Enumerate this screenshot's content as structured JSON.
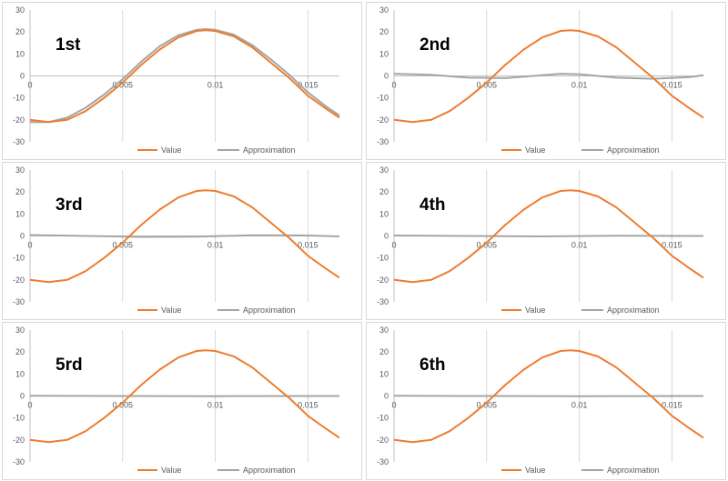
{
  "colors": {
    "value": "#ed7d31",
    "approximation": "#a5a5a5",
    "axis": "#bfbfbf",
    "grid": "#d9d9d9"
  },
  "legend": {
    "value_label": "Value",
    "approx_label": "Approximation"
  },
  "charts": [
    {
      "title": "1st"
    },
    {
      "title": "2nd"
    },
    {
      "title": "3rd"
    },
    {
      "title": "4th"
    },
    {
      "title": "5rd"
    },
    {
      "title": "6th"
    }
  ],
  "chart_data": [
    {
      "type": "line",
      "title": "1st",
      "xlim": [
        0,
        0.0167
      ],
      "ylim": [
        -30,
        30
      ],
      "x_ticks": [
        0,
        0.005,
        0.01,
        0.015
      ],
      "x_tick_labels": [
        "0",
        "0.005",
        "0.01",
        "0.015"
      ],
      "y_ticks": [
        30,
        20,
        10,
        0,
        -10,
        -20,
        -30
      ],
      "y_tick_labels": [
        "30",
        "20",
        "10",
        "0",
        "-10",
        "-20",
        "-30"
      ],
      "series": [
        {
          "name": "Value",
          "x": [
            0,
            0.001,
            0.002,
            0.003,
            0.004,
            0.005,
            0.006,
            0.007,
            0.008,
            0.009,
            0.0095,
            0.01,
            0.011,
            0.012,
            0.013,
            0.014,
            0.015,
            0.016,
            0.0167
          ],
          "values": [
            -20,
            -21,
            -20,
            -16,
            -10,
            -3,
            5,
            12,
            17.5,
            20.5,
            20.8,
            20.5,
            18,
            13,
            6,
            -1,
            -9,
            -15,
            -19
          ]
        },
        {
          "name": "Approximation",
          "x": [
            0,
            0.001,
            0.002,
            0.003,
            0.004,
            0.005,
            0.006,
            0.007,
            0.008,
            0.009,
            0.0095,
            0.01,
            0.011,
            0.012,
            0.013,
            0.014,
            0.015,
            0.016,
            0.0167
          ],
          "values": [
            -21,
            -21,
            -19,
            -14.5,
            -8.5,
            -1.5,
            6.5,
            13.5,
            18.5,
            21,
            21.3,
            21,
            18.8,
            14,
            7.5,
            0.5,
            -7.5,
            -14,
            -18
          ]
        }
      ]
    },
    {
      "type": "line",
      "title": "2nd",
      "xlim": [
        0,
        0.0167
      ],
      "ylim": [
        -30,
        30
      ],
      "x_ticks": [
        0,
        0.005,
        0.01,
        0.015
      ],
      "x_tick_labels": [
        "0",
        "0.005",
        "0.01",
        "0.015"
      ],
      "y_ticks": [
        30,
        20,
        10,
        0,
        -10,
        -20,
        -30
      ],
      "y_tick_labels": [
        "30",
        "20",
        "10",
        "0",
        "-10",
        "-20",
        "-30"
      ],
      "series": [
        {
          "name": "Value",
          "x": [
            0,
            0.001,
            0.002,
            0.003,
            0.004,
            0.005,
            0.006,
            0.007,
            0.008,
            0.009,
            0.0095,
            0.01,
            0.011,
            0.012,
            0.013,
            0.014,
            0.015,
            0.016,
            0.0167
          ],
          "values": [
            -20,
            -21,
            -20,
            -16,
            -10,
            -3,
            5,
            12,
            17.5,
            20.5,
            20.8,
            20.5,
            18,
            13,
            6,
            -1,
            -9,
            -15,
            -19
          ]
        },
        {
          "name": "Approximation",
          "x": [
            0,
            0.002,
            0.004,
            0.006,
            0.008,
            0.009,
            0.01,
            0.012,
            0.014,
            0.016,
            0.0167
          ],
          "values": [
            1,
            0.5,
            -0.8,
            -1,
            0.3,
            1,
            0.8,
            -0.8,
            -1.3,
            -0.5,
            0.3
          ]
        }
      ]
    },
    {
      "type": "line",
      "title": "3rd",
      "xlim": [
        0,
        0.0167
      ],
      "ylim": [
        -30,
        30
      ],
      "x_ticks": [
        0,
        0.005,
        0.01,
        0.015
      ],
      "x_tick_labels": [
        "0",
        "0.005",
        "0.01",
        "0.015"
      ],
      "y_ticks": [
        30,
        20,
        10,
        0,
        -10,
        -20,
        -30
      ],
      "y_tick_labels": [
        "30",
        "20",
        "10",
        "0",
        "-10",
        "-20",
        "-30"
      ],
      "series": [
        {
          "name": "Value",
          "x": [
            0,
            0.001,
            0.002,
            0.003,
            0.004,
            0.005,
            0.006,
            0.007,
            0.008,
            0.009,
            0.0095,
            0.01,
            0.011,
            0.012,
            0.013,
            0.014,
            0.015,
            0.016,
            0.0167
          ],
          "values": [
            -20,
            -21,
            -20,
            -16,
            -10,
            -3,
            5,
            12,
            17.5,
            20.5,
            20.8,
            20.5,
            18,
            13,
            6,
            -1,
            -9,
            -15,
            -19
          ]
        },
        {
          "name": "Approximation",
          "x": [
            0,
            0.003,
            0.006,
            0.009,
            0.012,
            0.015,
            0.0167
          ],
          "values": [
            0.4,
            0,
            -0.4,
            -0.3,
            0.3,
            0.2,
            -0.2
          ]
        }
      ]
    },
    {
      "type": "line",
      "title": "4th",
      "xlim": [
        0,
        0.0167
      ],
      "ylim": [
        -30,
        30
      ],
      "x_ticks": [
        0,
        0.005,
        0.01,
        0.015
      ],
      "x_tick_labels": [
        "0",
        "0.005",
        "0.01",
        "0.015"
      ],
      "y_ticks": [
        30,
        20,
        10,
        0,
        -10,
        -20,
        -30
      ],
      "y_tick_labels": [
        "30",
        "20",
        "10",
        "0",
        "-10",
        "-20",
        "-30"
      ],
      "series": [
        {
          "name": "Value",
          "x": [
            0,
            0.001,
            0.002,
            0.003,
            0.004,
            0.005,
            0.006,
            0.007,
            0.008,
            0.009,
            0.0095,
            0.01,
            0.011,
            0.012,
            0.013,
            0.014,
            0.015,
            0.016,
            0.0167
          ],
          "values": [
            -20,
            -21,
            -20,
            -16,
            -10,
            -3,
            5,
            12,
            17.5,
            20.5,
            20.8,
            20.5,
            18,
            13,
            6,
            -1,
            -9,
            -15,
            -19
          ]
        },
        {
          "name": "Approximation",
          "x": [
            0,
            0.004,
            0.008,
            0.012,
            0.0167
          ],
          "values": [
            0.2,
            0,
            -0.2,
            0.1,
            0
          ]
        }
      ]
    },
    {
      "type": "line",
      "title": "5rd",
      "xlim": [
        0,
        0.0167
      ],
      "ylim": [
        -30,
        30
      ],
      "x_ticks": [
        0,
        0.005,
        0.01,
        0.015
      ],
      "x_tick_labels": [
        "0",
        "0.005",
        "0.01",
        "0.015"
      ],
      "y_ticks": [
        30,
        20,
        10,
        0,
        -10,
        -20,
        -30
      ],
      "y_tick_labels": [
        "30",
        "20",
        "10",
        "0",
        "-10",
        "-20",
        "-30"
      ],
      "series": [
        {
          "name": "Value",
          "x": [
            0,
            0.001,
            0.002,
            0.003,
            0.004,
            0.005,
            0.006,
            0.007,
            0.008,
            0.009,
            0.0095,
            0.01,
            0.011,
            0.012,
            0.013,
            0.014,
            0.015,
            0.016,
            0.0167
          ],
          "values": [
            -20,
            -21,
            -20,
            -16,
            -10,
            -3,
            5,
            12,
            17.5,
            20.5,
            20.8,
            20.5,
            18,
            13,
            6,
            -1,
            -9,
            -15,
            -19
          ]
        },
        {
          "name": "Approximation",
          "x": [
            0,
            0.005,
            0.01,
            0.0167
          ],
          "values": [
            0.1,
            0,
            -0.1,
            0
          ]
        }
      ]
    },
    {
      "type": "line",
      "title": "6th",
      "xlim": [
        0,
        0.0167
      ],
      "ylim": [
        -30,
        30
      ],
      "x_ticks": [
        0,
        0.005,
        0.01,
        0.015
      ],
      "x_tick_labels": [
        "0",
        "0.005",
        "0.01",
        "0.015"
      ],
      "y_ticks": [
        30,
        20,
        10,
        0,
        -10,
        -20,
        -30
      ],
      "y_tick_labels": [
        "30",
        "20",
        "10",
        "0",
        "-10",
        "-20",
        "-30"
      ],
      "series": [
        {
          "name": "Value",
          "x": [
            0,
            0.001,
            0.002,
            0.003,
            0.004,
            0.005,
            0.006,
            0.007,
            0.008,
            0.009,
            0.0095,
            0.01,
            0.011,
            0.012,
            0.013,
            0.014,
            0.015,
            0.016,
            0.0167
          ],
          "values": [
            -20,
            -21,
            -20,
            -16,
            -10,
            -3,
            5,
            12,
            17.5,
            20.5,
            20.8,
            20.5,
            18,
            13,
            6,
            -1,
            -9,
            -15,
            -19
          ]
        },
        {
          "name": "Approximation",
          "x": [
            0,
            0.005,
            0.01,
            0.0167
          ],
          "values": [
            0.1,
            0,
            -0.1,
            0
          ]
        }
      ]
    }
  ]
}
